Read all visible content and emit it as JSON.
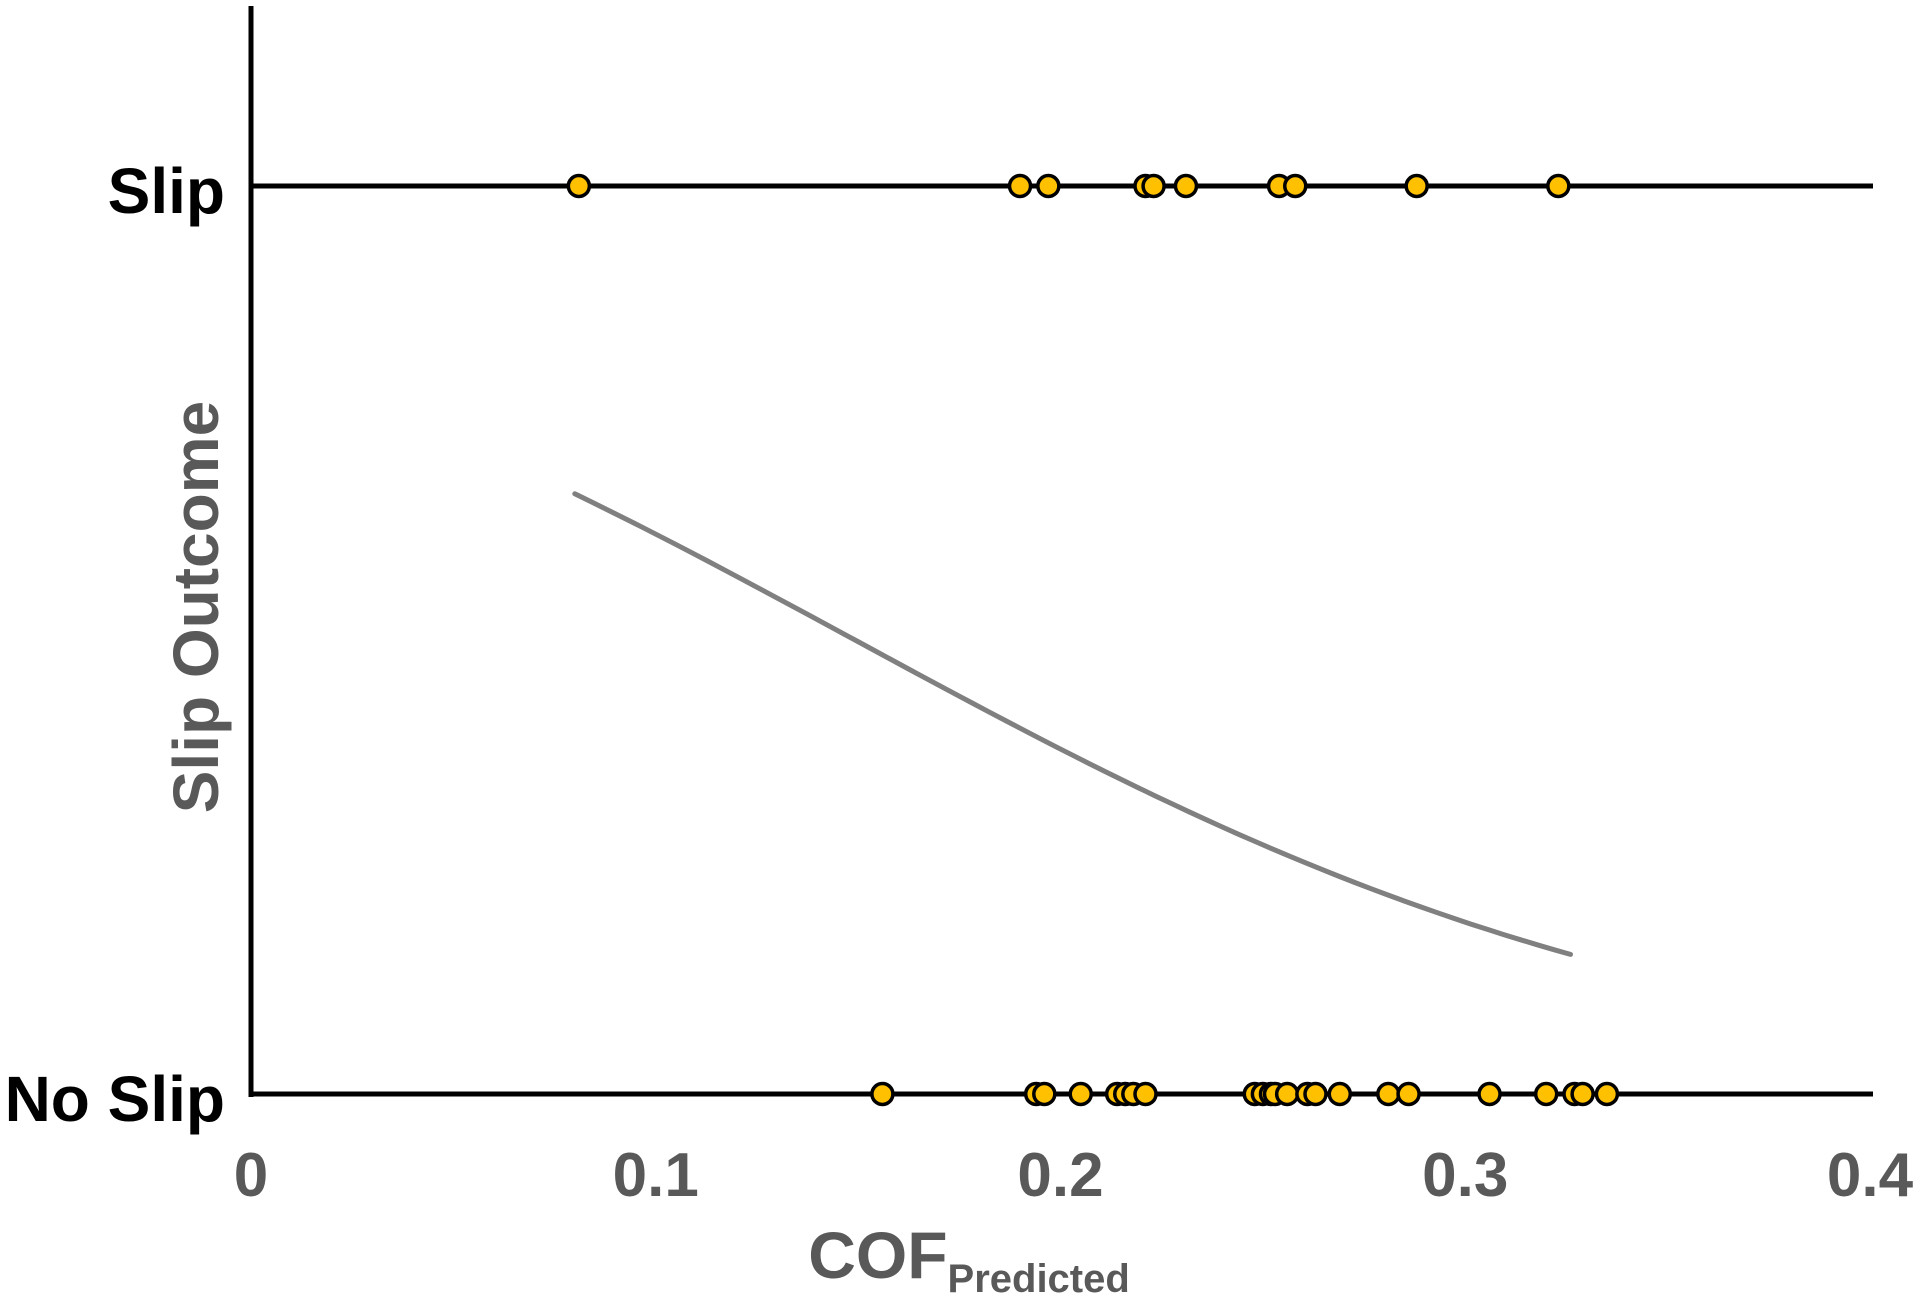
{
  "chart_data": {
    "type": "scatter",
    "title": "",
    "xlabel": "COF",
    "xlabel_subscript": "Predicted",
    "ylabel": "Slip Outcome",
    "xlim": [
      0,
      0.4
    ],
    "xticks": [
      "0",
      "0.1",
      "0.2",
      "0.3",
      "0.4"
    ],
    "xtick_values": [
      0,
      0.1,
      0.2,
      0.3,
      0.4
    ],
    "ycategories": [
      "No Slip",
      "Slip"
    ],
    "grid": false,
    "colors": {
      "marker": "#FFC000",
      "marker_edge": "#000000",
      "curve": "#808080",
      "axis": "#000000",
      "tick_text": "#595959"
    },
    "series": [
      {
        "name": "Slip",
        "y": 1,
        "x": [
          0.081,
          0.19,
          0.197,
          0.221,
          0.223,
          0.231,
          0.254,
          0.258,
          0.288,
          0.323
        ]
      },
      {
        "name": "No Slip",
        "y": 0,
        "x": [
          0.156,
          0.194,
          0.196,
          0.205,
          0.214,
          0.216,
          0.218,
          0.221,
          0.248,
          0.25,
          0.252,
          0.253,
          0.256,
          0.261,
          0.263,
          0.269,
          0.281,
          0.286,
          0.306,
          0.32,
          0.327,
          0.329,
          0.335
        ]
      }
    ],
    "fit_curve": {
      "type": "logistic",
      "intercept": 1.44,
      "slope": -9.65,
      "x_range": [
        0.08,
        0.326
      ]
    }
  }
}
